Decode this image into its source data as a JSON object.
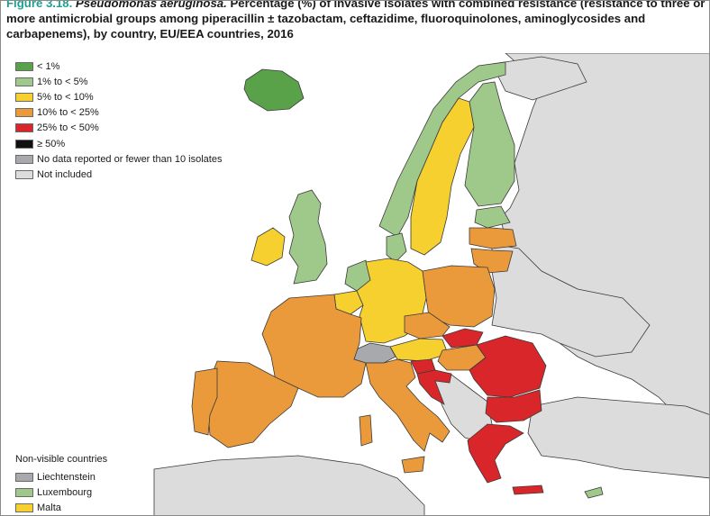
{
  "title": {
    "figure": "Figure 3.18.",
    "organism": "Pseudomonas aeruginosa.",
    "text": "Percentage (%) of invasive isolates with combined resistance (resistance to three or more antimicrobial groups among piperacillin ± tazobactam, ceftazidime, fluoroquinolones, aminoglycosides and carbapenems), by country, EU/EEA countries, 2016"
  },
  "colors": {
    "lt1": "#5aa24a",
    "c1to5": "#9fc98a",
    "c5to10": "#f5d02e",
    "c10to25": "#ea9a3a",
    "c25to50": "#d9262a",
    "ge50": "#111111",
    "nodata": "#a7a9ac",
    "notincluded": "#dcdcdc",
    "sea": "#ffffff",
    "border": "#3a3a3a"
  },
  "legend": [
    {
      "label": "< 1%",
      "color": "#5aa24a"
    },
    {
      "label": "1% to < 5%",
      "color": "#9fc98a"
    },
    {
      "label": "5% to < 10%",
      "color": "#f5d02e"
    },
    {
      "label": "10% to < 25%",
      "color": "#ea9a3a"
    },
    {
      "label": "25% to < 50%",
      "color": "#d9262a"
    },
    {
      "label": "≥ 50%",
      "color": "#111111"
    },
    {
      "label": "No data reported or fewer than 10 isolates",
      "color": "#a7a9ac"
    },
    {
      "label": "Not included",
      "color": "#dcdcdc"
    }
  ],
  "non_visible": {
    "title": "Non-visible countries",
    "items": [
      {
        "label": "Liechtenstein",
        "color": "#a7a9ac"
      },
      {
        "label": "Luxembourg",
        "color": "#9fc98a"
      },
      {
        "label": "Malta",
        "color": "#f5d02e"
      }
    ]
  }
}
